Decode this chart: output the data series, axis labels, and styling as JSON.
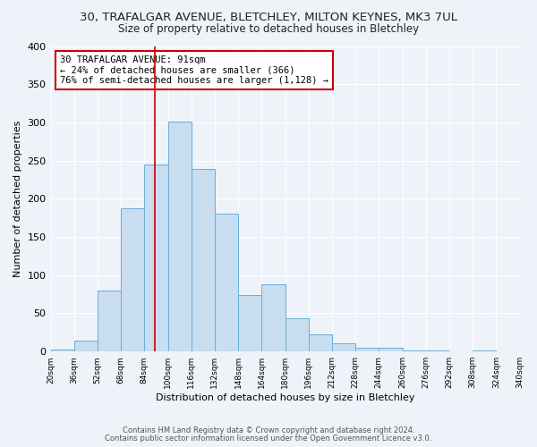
{
  "title": "30, TRAFALGAR AVENUE, BLETCHLEY, MILTON KEYNES, MK3 7UL",
  "subtitle": "Size of property relative to detached houses in Bletchley",
  "xlabel": "Distribution of detached houses by size in Bletchley",
  "ylabel": "Number of detached properties",
  "bin_edges": [
    20,
    36,
    52,
    68,
    84,
    100,
    116,
    132,
    148,
    164,
    180,
    196,
    212,
    228,
    244,
    260,
    276,
    292,
    308,
    324,
    340
  ],
  "counts": [
    3,
    14,
    80,
    188,
    245,
    301,
    239,
    181,
    74,
    88,
    43,
    22,
    11,
    5,
    5,
    1,
    1,
    0,
    1,
    0
  ],
  "bar_color": "#c8ddf0",
  "bar_edge_color": "#6aaed6",
  "property_size": 91,
  "vline_color": "#cc0000",
  "ylim": [
    0,
    400
  ],
  "annotation_text": "30 TRAFALGAR AVENUE: 91sqm\n← 24% of detached houses are smaller (366)\n76% of semi-detached houses are larger (1,128) →",
  "annotation_box_color": "#cc0000",
  "footer_line1": "Contains HM Land Registry data © Crown copyright and database right 2024.",
  "footer_line2": "Contains public sector information licensed under the Open Government Licence v3.0.",
  "background_color": "#eef2f9",
  "grid_color": "#ffffff",
  "title_fontsize": 9.5,
  "subtitle_fontsize": 8.5,
  "tick_label_fontsize": 6.5,
  "ylabel_fontsize": 8,
  "xlabel_fontsize": 8,
  "annotation_fontsize": 7.5,
  "footer_fontsize": 6
}
